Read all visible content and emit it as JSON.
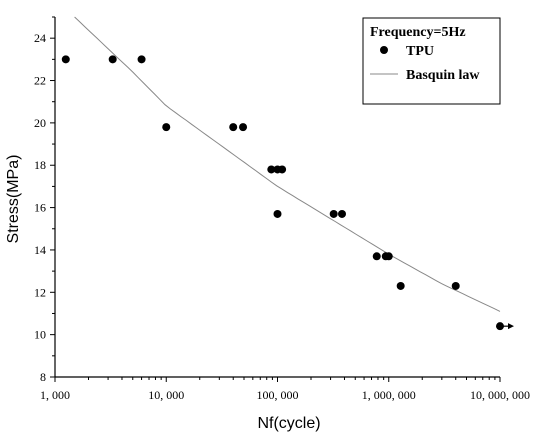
{
  "chart_data": {
    "type": "scatter",
    "xlabel": "Nf(cycle)",
    "ylabel": "Stress(MPa)",
    "xscale": "log",
    "xlim": [
      1000,
      10000000
    ],
    "ylim": [
      8,
      25
    ],
    "x_ticks": [
      1000,
      10000,
      100000,
      1000000,
      10000000
    ],
    "x_tick_labels": [
      "1, 000",
      "10, 000",
      "100, 000",
      "1, 000, 000",
      "10, 000, 000"
    ],
    "y_ticks": [
      8,
      10,
      12,
      14,
      16,
      18,
      20,
      22,
      24
    ],
    "y_tick_labels": [
      "8",
      "10",
      "12",
      "14",
      "16",
      "18",
      "20",
      "22",
      "24"
    ],
    "grid": false,
    "legend": {
      "placement": "top-right",
      "title": "Frequency=5Hz",
      "entries": [
        "TPU",
        "Basquin law"
      ]
    },
    "series": [
      {
        "name": "TPU",
        "type": "scatter",
        "color": "#000000",
        "points": [
          [
            1250,
            23.0
          ],
          [
            3300,
            23.0
          ],
          [
            6000,
            23.0
          ],
          [
            10000,
            19.8
          ],
          [
            40000,
            19.8
          ],
          [
            49000,
            19.8
          ],
          [
            88000,
            17.8
          ],
          [
            100000,
            17.8
          ],
          [
            110000,
            17.8
          ],
          [
            100000,
            15.7
          ],
          [
            320000,
            15.7
          ],
          [
            380000,
            15.7
          ],
          [
            780000,
            13.7
          ],
          [
            940000,
            13.7
          ],
          [
            1000000,
            13.7
          ],
          [
            1280000,
            12.3
          ],
          [
            4000000,
            12.3
          ],
          [
            10000000,
            10.4
          ]
        ]
      },
      {
        "name": "Basquin law",
        "type": "line",
        "color": "#888888",
        "points": [
          [
            1500,
            25.0
          ],
          [
            5000,
            22.4
          ],
          [
            10000,
            20.8
          ],
          [
            100000,
            17.0
          ],
          [
            1000000,
            13.8
          ],
          [
            3000000,
            12.4
          ],
          [
            10000000,
            11.1
          ]
        ]
      }
    ],
    "runout_arrow_at": [
      10000000,
      10.4
    ]
  }
}
